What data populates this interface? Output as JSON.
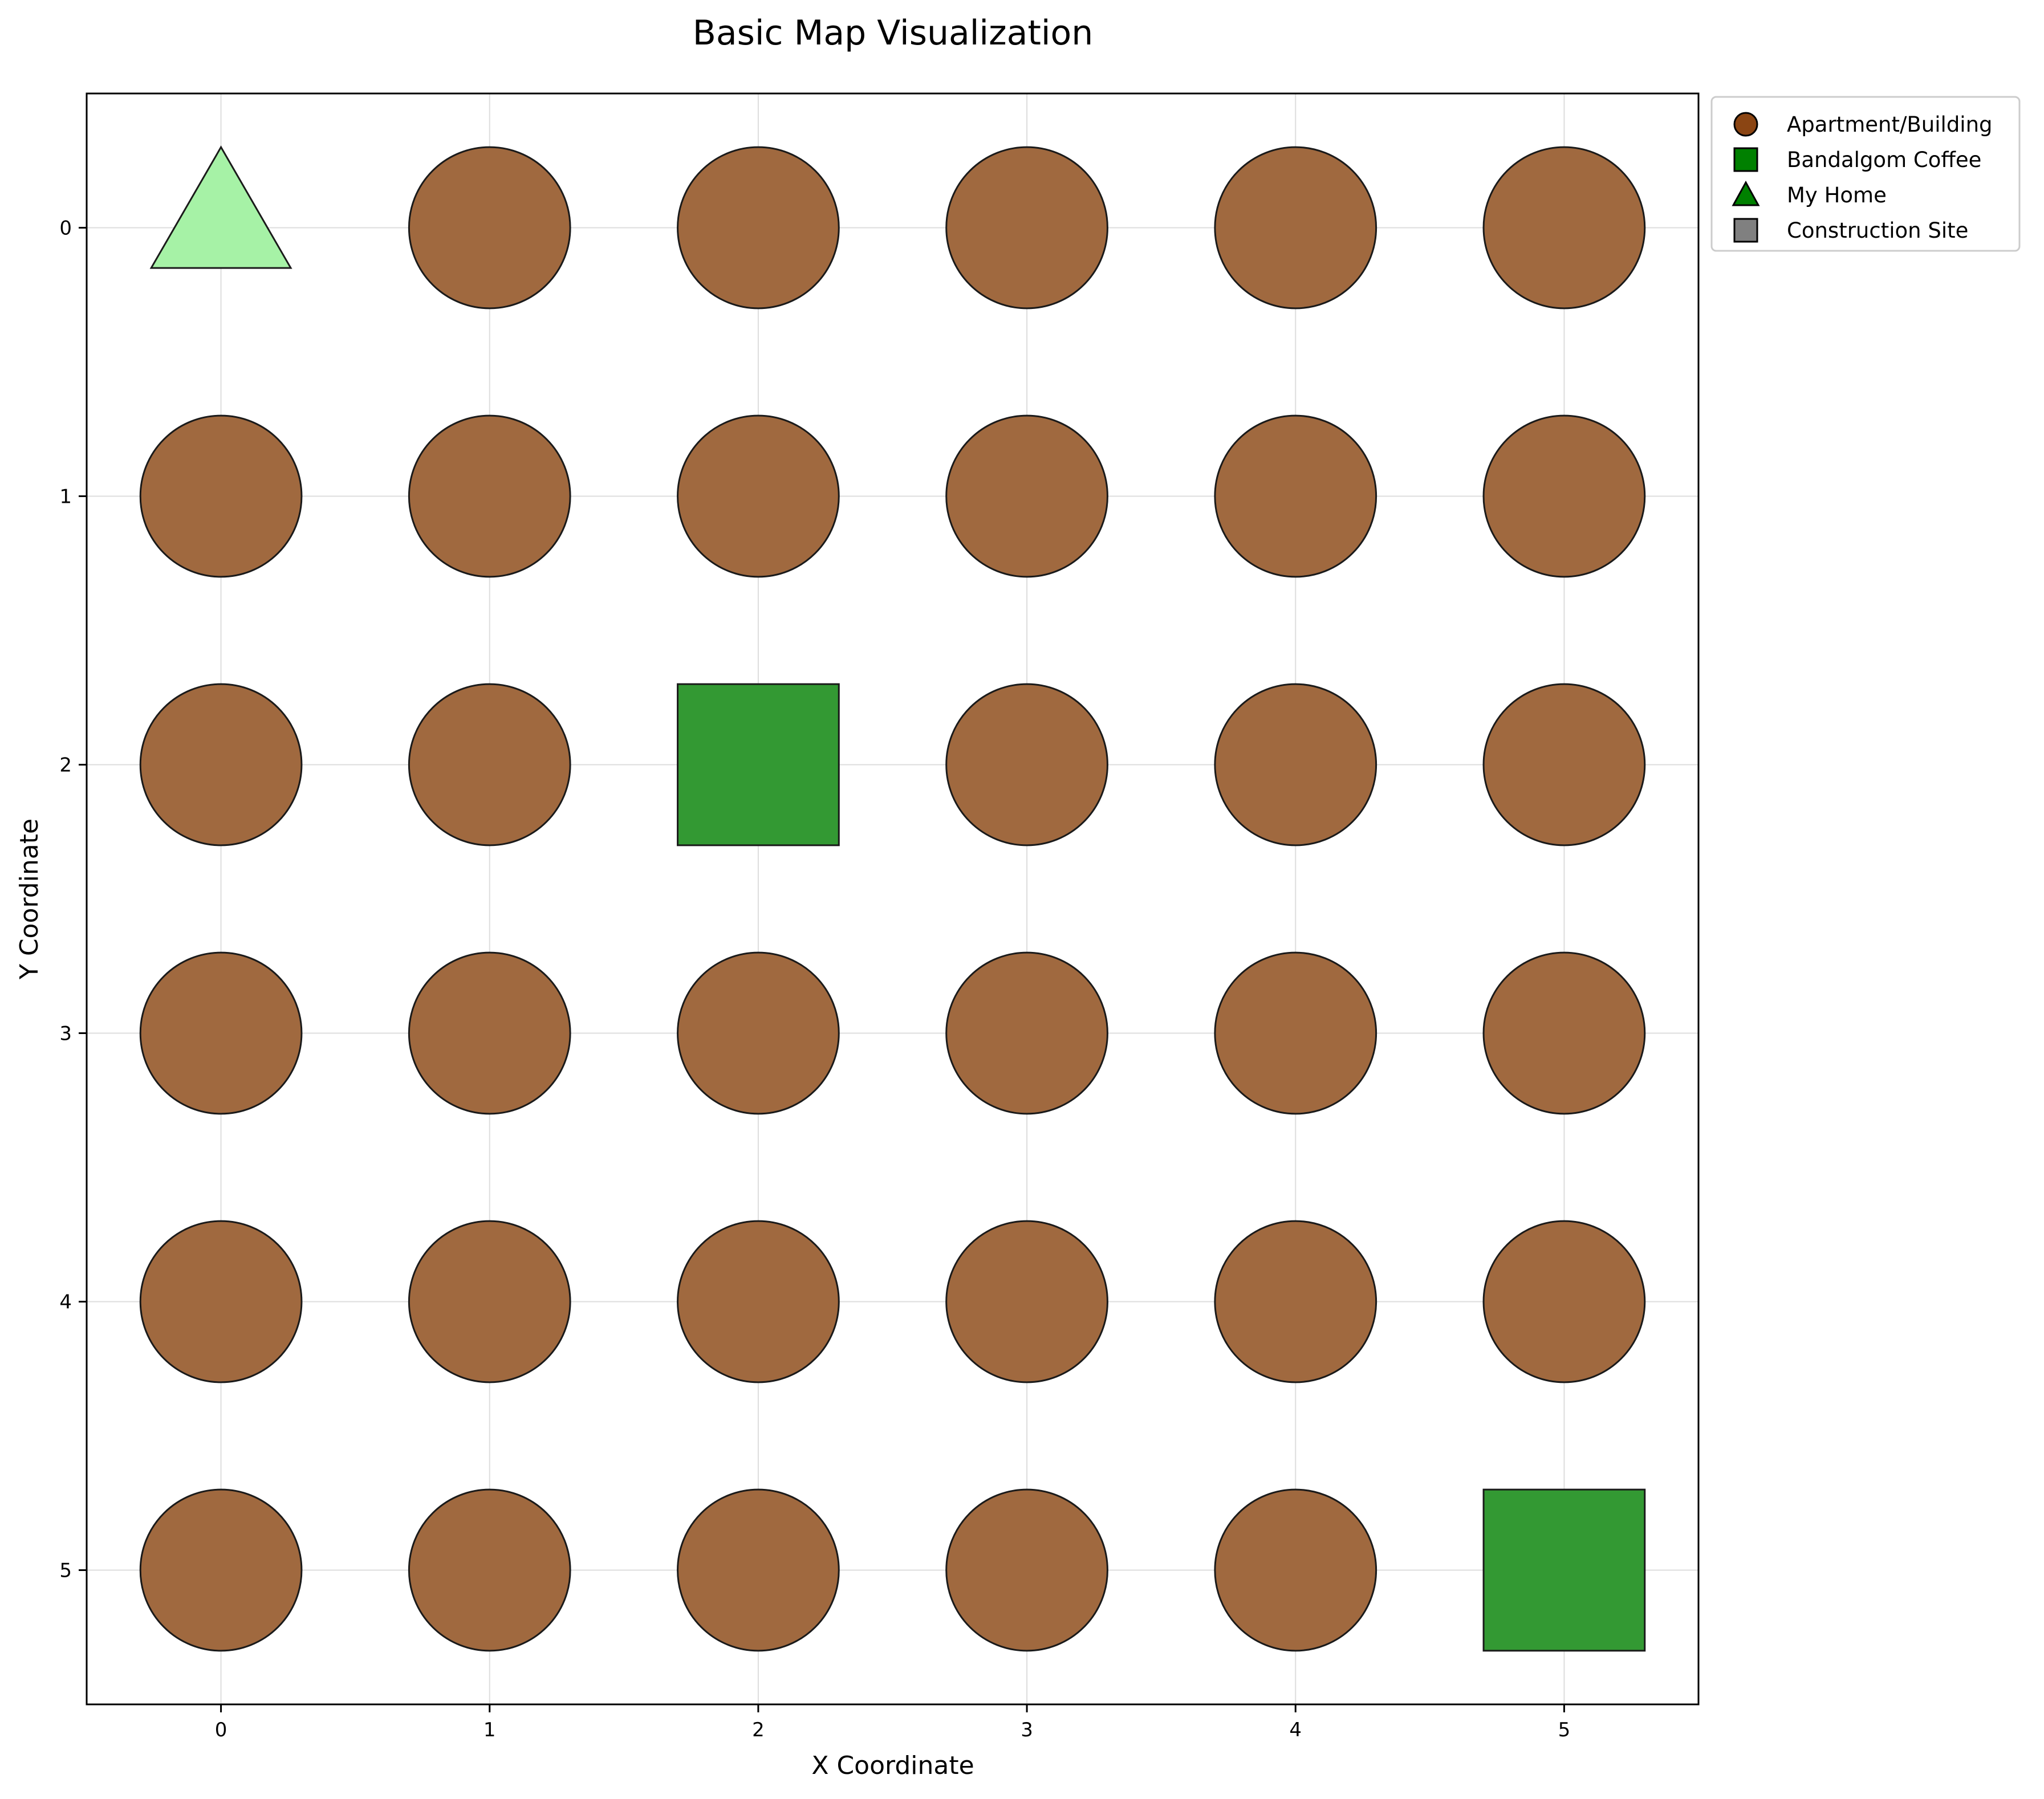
{
  "chart_data": {
    "type": "scatter",
    "title": "Basic Map Visualization",
    "xlabel": "X Coordinate",
    "ylabel": "Y Coordinate",
    "xlim": [
      -0.5,
      5.5
    ],
    "ylim": [
      5.5,
      -0.5
    ],
    "y_inverted": true,
    "xticks": [
      "0",
      "1",
      "2",
      "3",
      "4",
      "5"
    ],
    "yticks": [
      "0",
      "1",
      "2",
      "3",
      "4",
      "5"
    ],
    "grid": true,
    "legend_placement": "outside-top-right",
    "legend": [
      {
        "label": "Apartment/Building",
        "marker": "circle",
        "color": "#8B4513"
      },
      {
        "label": "Bandalgom Coffee",
        "marker": "square",
        "color": "#008000"
      },
      {
        "label": "My Home",
        "marker": "triangle",
        "color": "#008000"
      },
      {
        "label": "Construction Site",
        "marker": "square",
        "color": "#808080"
      }
    ],
    "colors": {
      "building": "#A0693F",
      "coffee": "#339933",
      "home": "#A6F2A6",
      "edge": "#1a1a1a",
      "grid": "#dddddd"
    },
    "points": [
      {
        "x": 0,
        "y": 0,
        "kind": "home"
      },
      {
        "x": 1,
        "y": 0,
        "kind": "building"
      },
      {
        "x": 2,
        "y": 0,
        "kind": "building"
      },
      {
        "x": 3,
        "y": 0,
        "kind": "building"
      },
      {
        "x": 4,
        "y": 0,
        "kind": "building"
      },
      {
        "x": 5,
        "y": 0,
        "kind": "building"
      },
      {
        "x": 0,
        "y": 1,
        "kind": "building"
      },
      {
        "x": 1,
        "y": 1,
        "kind": "building"
      },
      {
        "x": 2,
        "y": 1,
        "kind": "building"
      },
      {
        "x": 3,
        "y": 1,
        "kind": "building"
      },
      {
        "x": 4,
        "y": 1,
        "kind": "building"
      },
      {
        "x": 5,
        "y": 1,
        "kind": "building"
      },
      {
        "x": 0,
        "y": 2,
        "kind": "building"
      },
      {
        "x": 1,
        "y": 2,
        "kind": "building"
      },
      {
        "x": 2,
        "y": 2,
        "kind": "coffee"
      },
      {
        "x": 3,
        "y": 2,
        "kind": "building"
      },
      {
        "x": 4,
        "y": 2,
        "kind": "building"
      },
      {
        "x": 5,
        "y": 2,
        "kind": "building"
      },
      {
        "x": 0,
        "y": 3,
        "kind": "building"
      },
      {
        "x": 1,
        "y": 3,
        "kind": "building"
      },
      {
        "x": 2,
        "y": 3,
        "kind": "building"
      },
      {
        "x": 3,
        "y": 3,
        "kind": "building"
      },
      {
        "x": 4,
        "y": 3,
        "kind": "building"
      },
      {
        "x": 5,
        "y": 3,
        "kind": "building"
      },
      {
        "x": 0,
        "y": 4,
        "kind": "building"
      },
      {
        "x": 1,
        "y": 4,
        "kind": "building"
      },
      {
        "x": 2,
        "y": 4,
        "kind": "building"
      },
      {
        "x": 3,
        "y": 4,
        "kind": "building"
      },
      {
        "x": 4,
        "y": 4,
        "kind": "building"
      },
      {
        "x": 5,
        "y": 4,
        "kind": "building"
      },
      {
        "x": 0,
        "y": 5,
        "kind": "building"
      },
      {
        "x": 1,
        "y": 5,
        "kind": "building"
      },
      {
        "x": 2,
        "y": 5,
        "kind": "building"
      },
      {
        "x": 3,
        "y": 5,
        "kind": "building"
      },
      {
        "x": 4,
        "y": 5,
        "kind": "building"
      },
      {
        "x": 5,
        "y": 5,
        "kind": "coffee"
      }
    ]
  }
}
